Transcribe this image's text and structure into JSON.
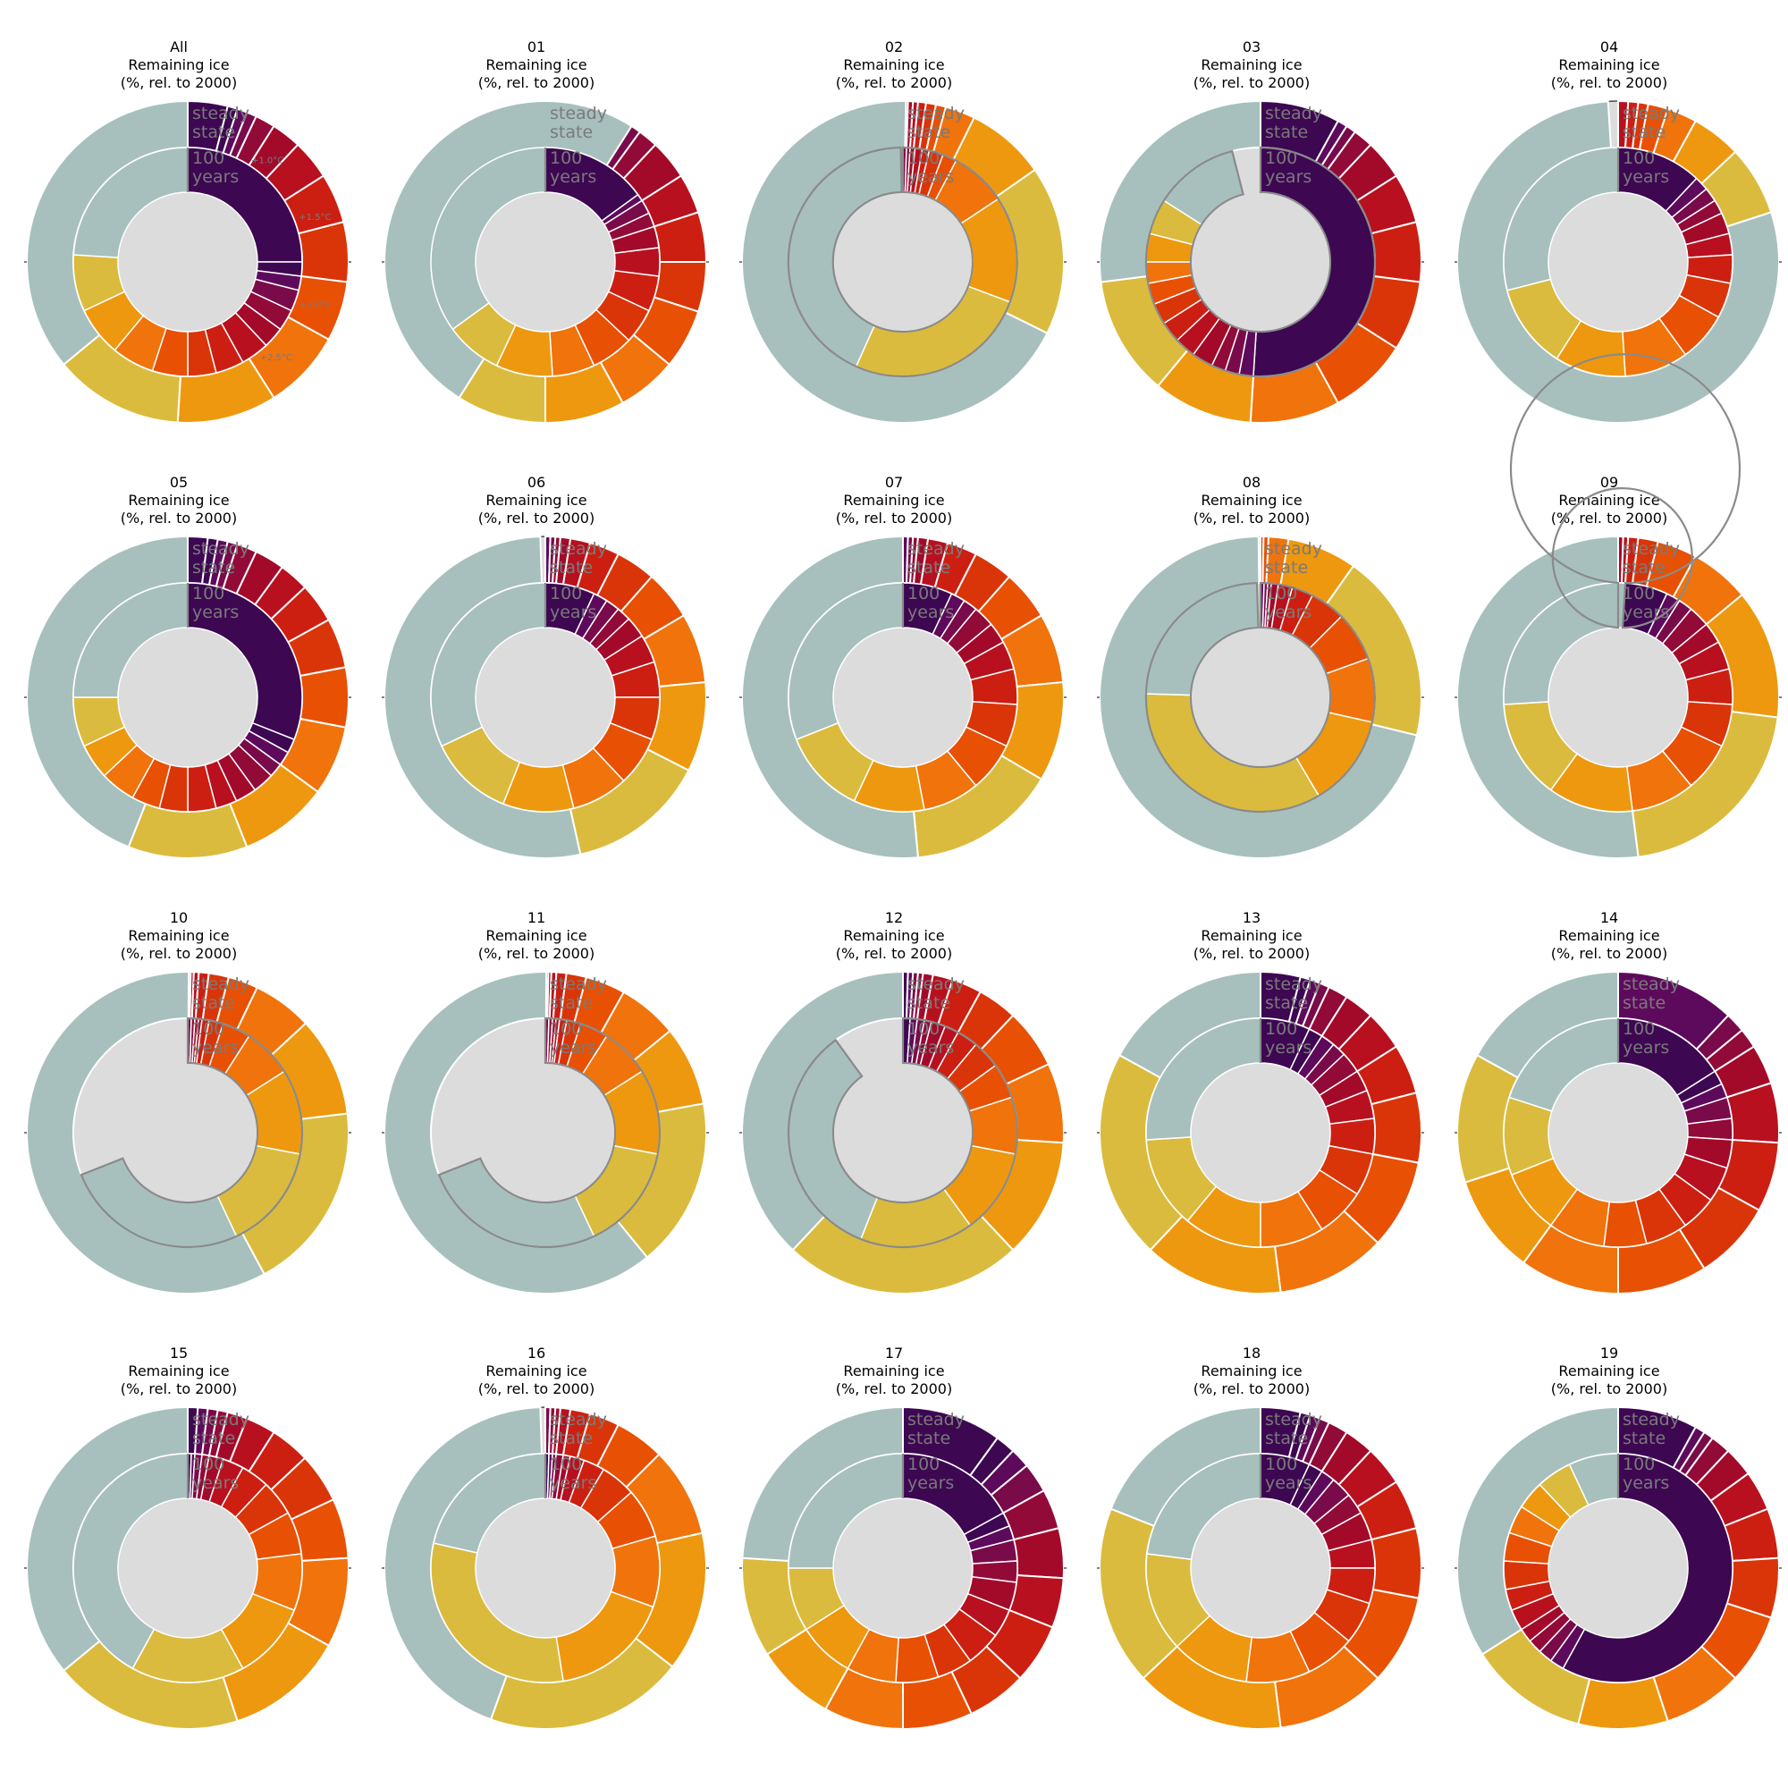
{
  "figure": {
    "subtitle_line2": "Remaining ice",
    "subtitle_line3": "(%, rel. to 2000)",
    "outer_ring_label": [
      "steady",
      "state"
    ],
    "inner_ring_label": [
      "100",
      "years"
    ],
    "warming_labels": [
      "+1.0°C",
      "+1.5°C",
      "+2.0°C",
      "+2.5°C"
    ]
  },
  "colors": {
    "bands": [
      "#3d0752",
      "#5e0a5c",
      "#790b4a",
      "#920a38",
      "#a30a2a",
      "#b8101f",
      "#cc1f12",
      "#da3508",
      "#e85003",
      "#f0730c",
      "#ee980f",
      "#dbbb3e",
      "#a7c0bd"
    ],
    "background": "#dcdcdc",
    "edge_gray": "#8a8a8a",
    "separator": "#ffffff",
    "label_gray": "#7a7a7a",
    "rim": "#000000"
  },
  "chart_data": [
    {
      "type": "pie",
      "title": "All",
      "outer_ring": [
        4,
        1,
        1,
        1,
        2,
        3,
        4,
        5,
        6,
        6,
        8,
        10,
        13,
        36
      ],
      "inner_ring": [
        25,
        2,
        2,
        3,
        3,
        3,
        4,
        4,
        4,
        5,
        6,
        7,
        8,
        24
      ],
      "show_warming_labels": true
    },
    {
      "type": "pie",
      "title": "01",
      "outer_ring": [
        8,
        1,
        1,
        2,
        4,
        4,
        5,
        5,
        6,
        6,
        8,
        9,
        50
      ],
      "inner_ring": [
        15,
        1,
        2,
        2,
        3,
        4,
        5,
        5,
        6,
        6,
        8,
        8,
        35
      ]
    },
    {
      "type": "pie",
      "title": "02",
      "outer_ring": [
        0.5,
        0.5,
        0.5,
        0.8,
        1,
        1,
        3,
        8,
        17,
        68
      ],
      "inner_ring": [
        0.5,
        0.5,
        0.7,
        1,
        1,
        2,
        2,
        8,
        15,
        26,
        43
      ]
    },
    {
      "type": "pie",
      "title": "03",
      "outer_ring": [
        8,
        1,
        1,
        2,
        4,
        5,
        6,
        7,
        8,
        9,
        10,
        12,
        27
      ],
      "inner_ring": [
        51,
        2,
        2,
        2,
        3,
        3,
        3,
        3,
        3,
        3,
        4,
        5,
        12
      ]
    },
    {
      "type": "pie",
      "title": "04",
      "outer_ring": [
        1,
        1,
        1,
        2,
        3,
        5,
        7,
        79
      ],
      "inner_ring": [
        12,
        2,
        2,
        2,
        3,
        3,
        4,
        5,
        7,
        9,
        10,
        12,
        29
      ]
    },
    {
      "type": "pie",
      "title": "05",
      "outer_ring": [
        2,
        1,
        1,
        1,
        2,
        3,
        3,
        4,
        5,
        6,
        7,
        9,
        12,
        44
      ],
      "inner_ring": [
        31,
        2,
        2,
        2,
        3,
        3,
        3,
        4,
        4,
        4,
        5,
        5,
        7,
        25
      ]
    },
    {
      "type": "pie",
      "title": "06",
      "outer_ring": [
        0.5,
        0.5,
        0.5,
        1,
        2,
        3,
        4,
        5,
        7,
        9,
        14,
        53
      ],
      "inner_ring": [
        7,
        2,
        2,
        2,
        3,
        4,
        5,
        6,
        7,
        8,
        10,
        12,
        32
      ]
    },
    {
      "type": "pie",
      "title": "07",
      "outer_ring": [
        0.5,
        0.5,
        0.5,
        1,
        2,
        3,
        4,
        5,
        7,
        10,
        15,
        51.5
      ],
      "inner_ring": [
        7,
        2,
        2,
        3,
        3,
        4,
        5,
        6,
        7,
        8,
        10,
        12,
        31
      ]
    },
    {
      "type": "pie",
      "title": "08",
      "outer_ring": [
        0.3,
        0.5,
        2,
        7,
        19,
        71
      ],
      "inner_ring": [
        0.5,
        0.5,
        0.5,
        1,
        2,
        3,
        5,
        7,
        9,
        13,
        34,
        24
      ]
    },
    {
      "type": "pie",
      "title": "09",
      "outer_ring": [
        0.5,
        0.5,
        1,
        2,
        4,
        6,
        13,
        21,
        52
      ],
      "inner_ring": [
        7,
        2,
        2,
        3,
        3,
        4,
        5,
        6,
        7,
        9,
        12,
        14,
        27
      ]
    },
    {
      "type": "pie",
      "title": "10",
      "outer_ring": [
        0.3,
        0.3,
        0.5,
        1,
        2,
        3,
        6,
        10,
        19,
        58
      ],
      "inner_ring": [
        0.5,
        0.5,
        0.5,
        0.5,
        1,
        2,
        4,
        7,
        12,
        15,
        26
      ]
    },
    {
      "type": "pie",
      "title": "11",
      "outer_ring": [
        0.3,
        0.3,
        0.5,
        1,
        2,
        4,
        6,
        8,
        17,
        61
      ],
      "inner_ring": [
        0.5,
        0.5,
        0.5,
        0.5,
        1,
        2,
        4,
        7,
        12,
        15,
        26
      ]
    },
    {
      "type": "pie",
      "title": "12",
      "outer_ring": [
        0.5,
        0.5,
        0.5,
        0.5,
        1,
        2,
        3,
        4,
        6,
        8,
        12,
        24,
        38
      ],
      "inner_ring": [
        1,
        1,
        1,
        1,
        2,
        2,
        3,
        4,
        5,
        8,
        12,
        16,
        34
      ]
    },
    {
      "type": "pie",
      "title": "13",
      "outer_ring": [
        4,
        1,
        1,
        1,
        2,
        3,
        4,
        5,
        7,
        9,
        11,
        14,
        21,
        17
      ],
      "inner_ring": [
        7,
        2,
        2,
        2,
        3,
        3,
        4,
        5,
        6,
        7,
        9,
        11,
        13,
        26
      ]
    },
    {
      "type": "pie",
      "title": "14",
      "outer_ring": [
        12,
        2,
        2,
        4,
        6,
        7,
        8,
        9,
        10,
        10,
        13,
        17
      ],
      "inner_ring": [
        16,
        2,
        2,
        3,
        3,
        4,
        5,
        5,
        6,
        6,
        8,
        9,
        11,
        20
      ]
    },
    {
      "type": "pie",
      "title": "15",
      "outer_ring": [
        1,
        1,
        1,
        1,
        2,
        3,
        4,
        5,
        6,
        9,
        12,
        19,
        36
      ],
      "inner_ring": [
        0.5,
        0.5,
        1,
        1,
        2,
        3,
        4,
        5,
        6,
        8,
        11,
        16,
        42
      ]
    },
    {
      "type": "pie",
      "title": "16",
      "outer_ring": [
        0.5,
        0.5,
        0.5,
        1,
        2,
        3,
        5,
        9,
        14,
        20,
        44
      ],
      "inner_ring": [
        0.5,
        0.5,
        0.5,
        1,
        1,
        2,
        3,
        5,
        7,
        10,
        17,
        31,
        21.5
      ]
    },
    {
      "type": "pie",
      "title": "17",
      "outer_ring": [
        10,
        2,
        2,
        3,
        4,
        5,
        5,
        6,
        6,
        7,
        8,
        8,
        10,
        24
      ],
      "inner_ring": [
        17,
        2,
        2,
        3,
        3,
        4,
        4,
        5,
        5,
        6,
        7,
        8,
        9,
        25
      ]
    },
    {
      "type": "pie",
      "title": "18",
      "outer_ring": [
        4,
        1,
        1,
        1,
        2,
        3,
        4,
        5,
        7,
        9,
        11,
        15,
        18,
        19
      ],
      "inner_ring": [
        7,
        2,
        2,
        3,
        3,
        4,
        4,
        5,
        6,
        7,
        9,
        11,
        14,
        23
      ]
    },
    {
      "type": "pie",
      "title": "19",
      "outer_ring": [
        8,
        1,
        1,
        2,
        3,
        4,
        5,
        6,
        7,
        8,
        9,
        12,
        34
      ],
      "inner_ring": [
        58,
        2,
        2,
        2,
        2,
        3,
        3,
        4,
        4,
        4,
        4,
        5,
        7
      ]
    }
  ]
}
